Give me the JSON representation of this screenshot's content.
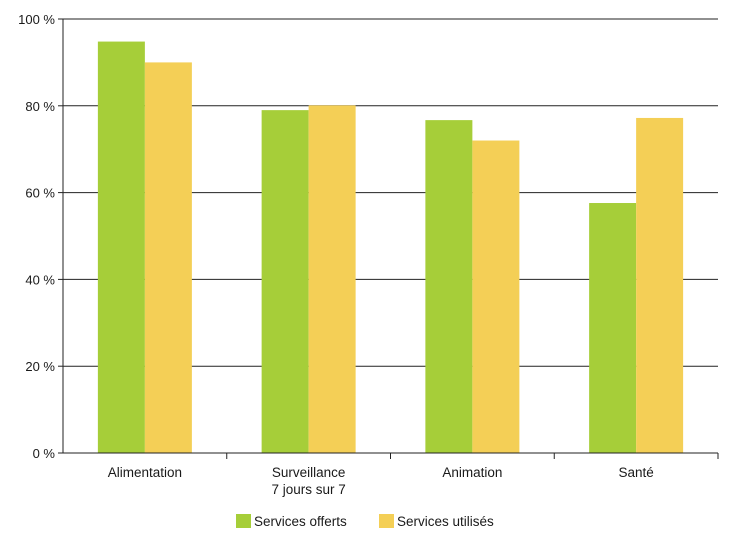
{
  "chart_data": {
    "type": "bar",
    "categories": [
      [
        "Alimentation"
      ],
      [
        "Surveillance",
        "7 jours sur 7"
      ],
      [
        "Animation"
      ],
      [
        "Santé"
      ]
    ],
    "series": [
      {
        "name": "Services offerts",
        "color": "#a6ce39",
        "values": [
          94.8,
          79.0,
          76.7,
          57.6
        ]
      },
      {
        "name": "Services utilisés",
        "color": "#f4cf56",
        "values": [
          90.0,
          80.1,
          72.0,
          77.2
        ]
      }
    ],
    "ylim": [
      0,
      100
    ],
    "yticks": [
      0,
      20,
      40,
      60,
      80,
      100
    ],
    "ytick_labels": [
      "0 %",
      "20 %",
      "40 %",
      "60 %",
      "80 %",
      "100 %"
    ],
    "grid": true,
    "legend_position": "bottom-center",
    "title": "",
    "xlabel": "",
    "ylabel": ""
  }
}
